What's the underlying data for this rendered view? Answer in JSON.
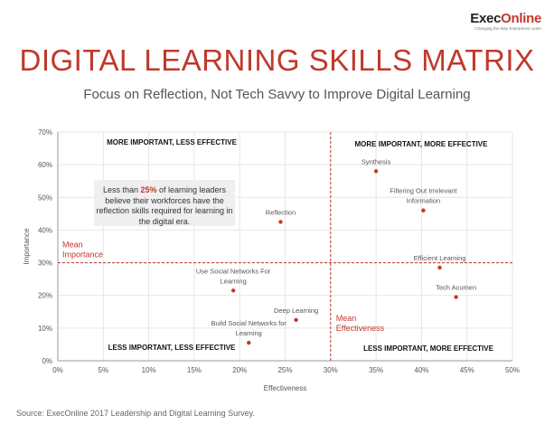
{
  "logo": {
    "main_prefix": "Exec",
    "main_accent": "Online",
    "tagline": "Changing the Way Enterprises Learn"
  },
  "title": "DIGITAL LEARNING SKILLS MATRIX",
  "subtitle": "Focus on Reflection, Not Tech Savvy to Improve Digital Learning",
  "source": "Source: ExecOnline 2017 Leadership and Digital Learning Survey.",
  "callout": {
    "before": "Less than ",
    "pct": "25%",
    "after": " of learning leaders believe their workforces have the reflection skills required for learning in the digital era."
  },
  "colors": {
    "accent": "#c0392b",
    "grid": "#e6e6e6",
    "text": "#333333"
  },
  "chart_data": {
    "type": "scatter",
    "xlabel": "Effectiveness",
    "ylabel": "Importance",
    "xlim": [
      0,
      50
    ],
    "ylim": [
      0,
      70
    ],
    "x_ticks": [
      0,
      5,
      10,
      15,
      20,
      25,
      30,
      35,
      40,
      45,
      50
    ],
    "y_ticks": [
      0,
      10,
      20,
      30,
      40,
      50,
      60,
      70
    ],
    "x_tick_labels": [
      "0%",
      "5%",
      "10%",
      "15%",
      "20%",
      "25%",
      "30%",
      "35%",
      "40%",
      "45%",
      "50%"
    ],
    "y_tick_labels": [
      "0%",
      "10%",
      "20%",
      "30%",
      "40%",
      "50%",
      "60%",
      "70%"
    ],
    "grid": true,
    "mean_importance": 30,
    "mean_effectiveness": 30,
    "mean_importance_label": [
      "Mean",
      "Importance"
    ],
    "mean_effectiveness_label": [
      "Mean",
      "Effectiveness"
    ],
    "quadrants": {
      "top_left": "MORE IMPORTANT, LESS EFFECTIVE",
      "top_right": "MORE IMPORTANT, MORE EFFECTIVE",
      "bottom_left": "LESS IMPORTANT, LESS EFFECTIVE",
      "bottom_right": "LESS IMPORTANT, MORE EFFECTIVE"
    },
    "points": [
      {
        "label": [
          "Synthesis"
        ],
        "x": 35,
        "y": 58
      },
      {
        "label": [
          "Filtering Out Irrelevant",
          "Information"
        ],
        "x": 40.2,
        "y": 46
      },
      {
        "label": [
          "Reflection"
        ],
        "x": 24.5,
        "y": 42.5
      },
      {
        "label": [
          "Efficient Learning"
        ],
        "x": 42,
        "y": 28.5
      },
      {
        "label": [
          "Use Social Networks For",
          "Learning"
        ],
        "x": 19.3,
        "y": 21.5
      },
      {
        "label": [
          "Tech Acumen"
        ],
        "x": 43.8,
        "y": 19.5
      },
      {
        "label": [
          "Deep Learning"
        ],
        "x": 26.2,
        "y": 12.5
      },
      {
        "label": [
          "Build Social Networks for",
          "Learning"
        ],
        "x": 21,
        "y": 5.5
      }
    ]
  }
}
